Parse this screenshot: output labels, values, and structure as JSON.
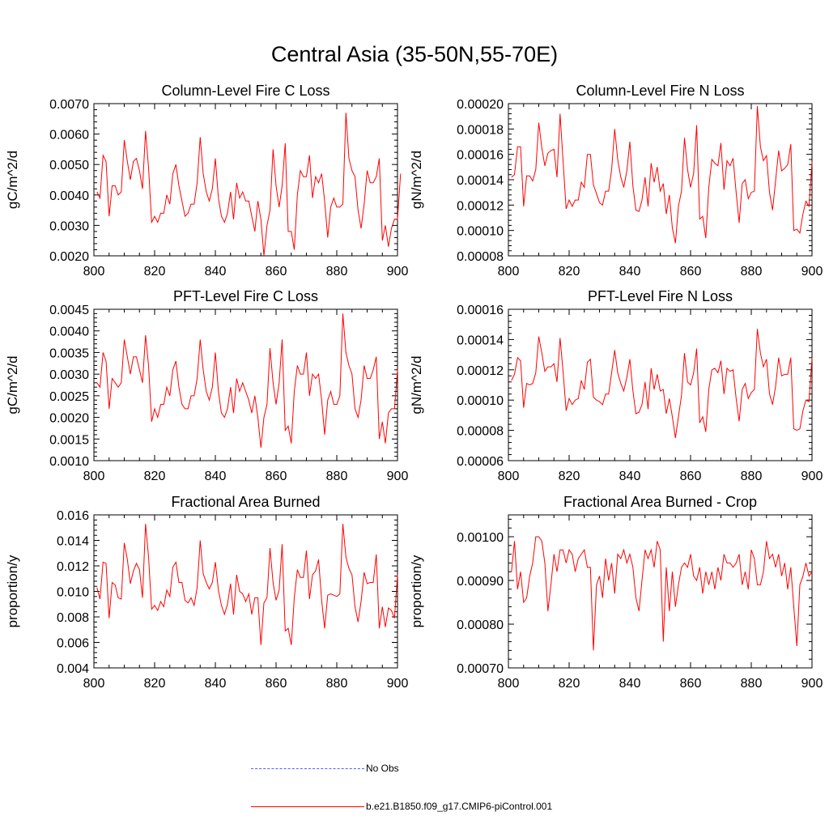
{
  "title": "Central Asia (35-50N,55-70E)",
  "legend": [
    {
      "label": "No Obs",
      "color": "#5a5aff",
      "style": "dashed"
    },
    {
      "label": "b.e21.B1850.f09_g17.CMIP6-piControl.001",
      "color": "#ff0000",
      "style": "solid"
    }
  ],
  "chart_data": [
    {
      "type": "line",
      "title": "Column-Level Fire C Loss",
      "ylabel": "gC/m^2/d",
      "xlim": [
        800,
        900
      ],
      "ylim": [
        0.002,
        0.007
      ],
      "xticks": [
        "800",
        "820",
        "840",
        "860",
        "880",
        "900"
      ],
      "yticks": [
        "0.0020",
        "0.0030",
        "0.0040",
        "0.0050",
        "0.0060",
        "0.0070"
      ],
      "x_start": 801,
      "values": [
        0.0041,
        0.0039,
        0.0053,
        0.0051,
        0.0033,
        0.0043,
        0.0043,
        0.004,
        0.0041,
        0.0058,
        0.0051,
        0.0045,
        0.0051,
        0.0052,
        0.0048,
        0.0042,
        0.0061,
        0.0049,
        0.0031,
        0.0033,
        0.0031,
        0.0034,
        0.0034,
        0.004,
        0.0037,
        0.0047,
        0.005,
        0.0043,
        0.0038,
        0.0033,
        0.0034,
        0.0037,
        0.0037,
        0.0044,
        0.0059,
        0.0047,
        0.0041,
        0.0038,
        0.0042,
        0.0052,
        0.0039,
        0.0033,
        0.0031,
        0.0034,
        0.0041,
        0.0032,
        0.0044,
        0.0039,
        0.0041,
        0.0038,
        0.0038,
        0.0033,
        0.0028,
        0.0038,
        0.0032,
        0.002,
        0.003,
        0.0035,
        0.0055,
        0.0043,
        0.0036,
        0.0043,
        0.0057,
        0.0028,
        0.0028,
        0.0022,
        0.004,
        0.0048,
        0.0046,
        0.0046,
        0.0053,
        0.0039,
        0.0046,
        0.0044,
        0.0047,
        0.0038,
        0.0026,
        0.0036,
        0.0039,
        0.0036,
        0.0036,
        0.0037,
        0.0067,
        0.0052,
        0.0048,
        0.0046,
        0.0035,
        0.0029,
        0.0037,
        0.0048,
        0.0044,
        0.0044,
        0.0046,
        0.0052,
        0.0025,
        0.003,
        0.0023,
        0.0029,
        0.0032,
        0.0032,
        0.0047
      ]
    },
    {
      "type": "line",
      "title": "Column-Level Fire N Loss",
      "ylabel": "gN/m^2/d",
      "xlim": [
        800,
        900
      ],
      "ylim": [
        8e-05,
        0.0002
      ],
      "xticks": [
        "800",
        "820",
        "840",
        "860",
        "880",
        "900"
      ],
      "yticks": [
        "0.00008",
        "0.00010",
        "0.00012",
        "0.00014",
        "0.00016",
        "0.00018",
        "0.00020"
      ],
      "x_start": 801,
      "values": [
        0.000142,
        0.000144,
        0.000166,
        0.000166,
        0.000119,
        0.000143,
        0.000143,
        0.000139,
        0.000148,
        0.000185,
        0.000165,
        0.000151,
        0.000161,
        0.000163,
        0.000164,
        0.000142,
        0.000192,
        0.000155,
        0.000117,
        0.000124,
        0.000119,
        0.000124,
        0.000124,
        0.000138,
        0.000134,
        0.00016,
        0.00016,
        0.000136,
        0.000129,
        0.000122,
        0.00012,
        0.000131,
        0.000131,
        0.000148,
        0.00018,
        0.000156,
        0.000142,
        0.000134,
        0.000147,
        0.00017,
        0.000135,
        0.000116,
        0.000115,
        0.000124,
        0.000142,
        0.000119,
        0.000153,
        0.000138,
        0.00015,
        0.000131,
        0.000137,
        0.000113,
        0.000128,
        0.000102,
        9e-05,
        0.000119,
        0.000131,
        0.000173,
        0.000148,
        0.000134,
        0.000145,
        0.000183,
        0.000109,
        0.000111,
        9.4e-05,
        0.000134,
        0.000156,
        0.000153,
        0.000151,
        0.000169,
        0.000132,
        0.000155,
        0.000151,
        0.000157,
        0.00013,
        0.000106,
        0.000137,
        0.00014,
        0.000125,
        0.00013,
        0.000131,
        0.000198,
        0.000166,
        0.000155,
        0.000159,
        0.00013,
        0.000116,
        0.000139,
        0.000163,
        0.000147,
        0.000149,
        0.000152,
        0.000168,
        0.0001,
        0.000101,
        9.8e-05,
        0.000113,
        0.000123,
        0.000119,
        0.000154
      ]
    },
    {
      "type": "line",
      "title": "PFT-Level Fire C Loss",
      "ylabel": "gC/m^2/d",
      "xlim": [
        800,
        900
      ],
      "ylim": [
        0.001,
        0.0045
      ],
      "xticks": [
        "800",
        "820",
        "840",
        "860",
        "880",
        "900"
      ],
      "yticks": [
        "0.0010",
        "0.0015",
        "0.0020",
        "0.0025",
        "0.0030",
        "0.0035",
        "0.0040",
        "0.0045"
      ],
      "x_start": 801,
      "values": [
        0.0028,
        0.0027,
        0.0035,
        0.0033,
        0.0022,
        0.0029,
        0.0028,
        0.0027,
        0.0028,
        0.0038,
        0.0034,
        0.003,
        0.0034,
        0.0034,
        0.0031,
        0.0028,
        0.0039,
        0.0032,
        0.0019,
        0.0022,
        0.002,
        0.0023,
        0.0023,
        0.0027,
        0.0025,
        0.0031,
        0.0033,
        0.0027,
        0.0023,
        0.0022,
        0.0022,
        0.0025,
        0.0025,
        0.0029,
        0.0038,
        0.0031,
        0.0026,
        0.0024,
        0.0027,
        0.0035,
        0.0026,
        0.0021,
        0.002,
        0.0022,
        0.0027,
        0.0021,
        0.0029,
        0.0026,
        0.0028,
        0.0026,
        0.0024,
        0.0021,
        0.0025,
        0.002,
        0.0013,
        0.002,
        0.0023,
        0.0036,
        0.0028,
        0.0023,
        0.0028,
        0.0038,
        0.0017,
        0.0018,
        0.0014,
        0.0026,
        0.0032,
        0.003,
        0.003,
        0.0035,
        0.0025,
        0.003,
        0.0029,
        0.003,
        0.0024,
        0.0016,
        0.0024,
        0.0026,
        0.0023,
        0.0023,
        0.0025,
        0.0044,
        0.0035,
        0.0032,
        0.003,
        0.0022,
        0.002,
        0.0024,
        0.0032,
        0.0029,
        0.0029,
        0.0031,
        0.0034,
        0.0015,
        0.0019,
        0.0014,
        0.0021,
        0.0022,
        0.0022,
        0.0031
      ]
    },
    {
      "type": "line",
      "title": "PFT-Level Fire N Loss",
      "ylabel": "gN/m^2/d",
      "xlim": [
        800,
        900
      ],
      "ylim": [
        6e-05,
        0.00016
      ],
      "xticks": [
        "800",
        "820",
        "840",
        "860",
        "880",
        "900"
      ],
      "yticks": [
        "0.00006",
        "0.00008",
        "0.00010",
        "0.00012",
        "0.00014",
        "0.00016"
      ],
      "x_start": 801,
      "values": [
        0.000113,
        0.000117,
        0.000128,
        0.000126,
        9.5e-05,
        0.000111,
        0.00011,
        0.000111,
        0.000118,
        0.000142,
        0.000131,
        0.000119,
        0.000122,
        0.000122,
        0.000124,
        0.000112,
        0.000141,
        0.000119,
        9.3e-05,
        0.000101,
        9.7e-05,
        0.0001,
        0.000101,
        0.000113,
        0.000107,
        0.000125,
        0.000127,
        0.000102,
        0.0001,
        9.9e-05,
        9.7e-05,
        0.000104,
        0.000104,
        0.000118,
        0.000133,
        0.000118,
        0.000111,
        0.000106,
        0.000115,
        0.000127,
        0.000106,
        9.1e-05,
        9.2e-05,
        9.7e-05,
        0.000112,
        9.4e-05,
        0.000121,
        0.000107,
        0.000117,
        0.000106,
        0.000107,
        9.1e-05,
        0.000101,
        8.9e-05,
        7.5e-05,
        8.9e-05,
        0.000103,
        0.000131,
        0.000112,
        0.00011,
        0.000118,
        0.000134,
        8.5e-05,
        8.9e-05,
        7.9e-05,
        0.000107,
        0.00012,
        0.000121,
        0.000118,
        0.000126,
        0.000104,
        0.000121,
        0.000119,
        0.00012,
        0.000101,
        8.6e-05,
        0.000107,
        0.000111,
        0.000101,
        0.000105,
        0.000107,
        0.000147,
        0.000131,
        0.000122,
        0.000127,
        0.000104,
        9.7e-05,
        0.000109,
        0.000128,
        0.000116,
        0.000117,
        0.000117,
        0.000128,
        8.1e-05,
        8e-05,
        8.1e-05,
        9.3e-05,
        0.0001,
        9.9e-05,
        0.000128
      ]
    },
    {
      "type": "line",
      "title": "Fractional Area Burned",
      "ylabel": "proportion/y",
      "xlim": [
        800,
        900
      ],
      "ylim": [
        0.004,
        0.016
      ],
      "xticks": [
        "800",
        "820",
        "840",
        "860",
        "880",
        "900"
      ],
      "yticks": [
        "0.004",
        "0.006",
        "0.008",
        "0.010",
        "0.012",
        "0.014",
        "0.016"
      ],
      "x_start": 801,
      "values": [
        0.0103,
        0.0094,
        0.0123,
        0.0122,
        0.0079,
        0.0107,
        0.0105,
        0.0095,
        0.0094,
        0.0138,
        0.0125,
        0.0106,
        0.0116,
        0.0122,
        0.0117,
        0.0095,
        0.0153,
        0.0127,
        0.0086,
        0.0089,
        0.0085,
        0.0092,
        0.0088,
        0.0101,
        0.0096,
        0.0119,
        0.0123,
        0.0107,
        0.0107,
        0.0093,
        0.0091,
        0.0095,
        0.0089,
        0.0103,
        0.014,
        0.0114,
        0.0107,
        0.0102,
        0.0107,
        0.0123,
        0.0101,
        0.0089,
        0.0082,
        0.009,
        0.0106,
        0.0082,
        0.0113,
        0.01,
        0.0098,
        0.0092,
        0.0098,
        0.0082,
        0.0095,
        0.0095,
        0.0058,
        0.0091,
        0.0095,
        0.0134,
        0.0107,
        0.0093,
        0.0101,
        0.0137,
        0.0069,
        0.0071,
        0.0058,
        0.0095,
        0.0117,
        0.0111,
        0.0111,
        0.0132,
        0.0094,
        0.0113,
        0.0116,
        0.0125,
        0.0093,
        0.0071,
        0.0097,
        0.0098,
        0.0097,
        0.0096,
        0.0098,
        0.0153,
        0.0127,
        0.0118,
        0.0113,
        0.0088,
        0.0076,
        0.0092,
        0.0115,
        0.0106,
        0.0107,
        0.0107,
        0.0129,
        0.0071,
        0.0088,
        0.0072,
        0.0087,
        0.0085,
        0.0079,
        0.0113
      ]
    },
    {
      "type": "line",
      "title": "Fractional Area Burned - Crop",
      "ylabel": "proportion/y",
      "xlim": [
        800,
        900
      ],
      "ylim": [
        0.0007,
        0.00105
      ],
      "xticks": [
        "800",
        "820",
        "840",
        "860",
        "880",
        "900"
      ],
      "yticks": [
        "0.00070",
        "0.00080",
        "0.00090",
        "0.00100"
      ],
      "x_start": 801,
      "values": [
        0.00092,
        0.00099,
        0.00088,
        0.00092,
        0.00085,
        0.00086,
        0.00091,
        0.00094,
        0.001,
        0.001,
        0.00099,
        0.00094,
        0.00083,
        0.00089,
        0.00096,
        0.00092,
        0.00097,
        0.00097,
        0.00094,
        0.00097,
        0.00096,
        0.00092,
        0.00095,
        0.00096,
        0.00097,
        0.00093,
        0.00093,
        0.00074,
        0.00089,
        0.00091,
        0.00086,
        0.00095,
        0.0009,
        0.00094,
        0.00087,
        0.00096,
        0.00095,
        0.00097,
        0.00094,
        0.00096,
        0.00093,
        0.00086,
        0.00083,
        0.0009,
        0.00097,
        0.00095,
        0.00097,
        0.00093,
        0.00099,
        0.00097,
        0.00076,
        0.00093,
        0.00083,
        0.00092,
        0.00084,
        0.00089,
        0.00093,
        0.00094,
        0.00093,
        0.00096,
        0.00091,
        0.0009,
        0.00093,
        0.00087,
        0.00092,
        0.00089,
        0.00092,
        0.00088,
        0.00093,
        0.0009,
        0.00096,
        0.00094,
        0.00094,
        0.00093,
        0.00094,
        0.00096,
        0.00089,
        0.00092,
        0.00088,
        0.00097,
        0.00095,
        0.00089,
        0.00089,
        0.00092,
        0.00099,
        0.00095,
        0.00096,
        0.00093,
        0.00096,
        0.00091,
        0.00094,
        0.00088,
        0.00093,
        0.00084,
        0.00075,
        0.00089,
        0.00091,
        0.00094,
        0.00091,
        0.00092
      ]
    }
  ]
}
